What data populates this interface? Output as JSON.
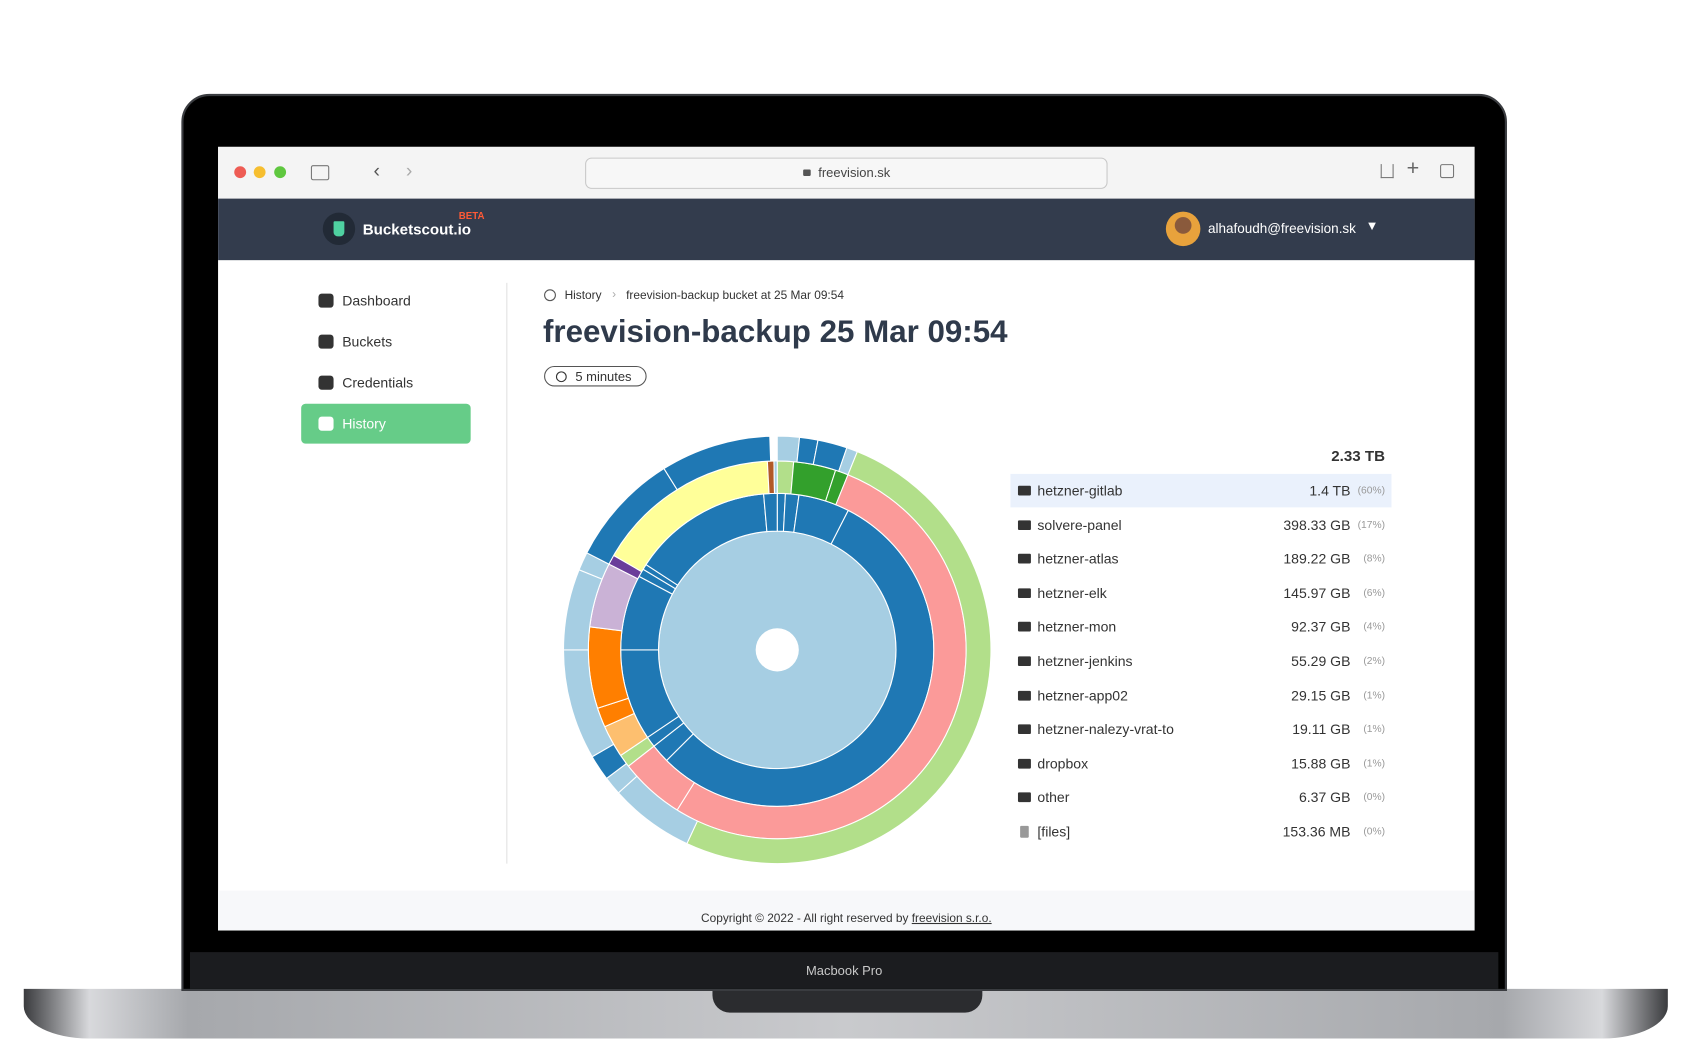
{
  "browser": {
    "url": "freevision.sk"
  },
  "header": {
    "brand": "Bucketscout.io",
    "badge": "BETA",
    "user": "alhafoudh@freevision.sk"
  },
  "sidebar": {
    "items": [
      "Dashboard",
      "Buckets",
      "Credentials",
      "History"
    ]
  },
  "breadcrumb": [
    "History",
    "freevision-backup bucket at 25 Mar 09:54"
  ],
  "title": "freevision-backup 25 Mar 09:54",
  "duration": "5 minutes",
  "usage": {
    "total": "2.33 TB",
    "rows": [
      {
        "name": "hetzner-gitlab",
        "size": "1.4 TB",
        "share": "(60%)"
      },
      {
        "name": "solvere-panel",
        "size": "398.33 GB",
        "share": "(17%)"
      },
      {
        "name": "hetzner-atlas",
        "size": "189.22 GB",
        "share": "(8%)"
      },
      {
        "name": "hetzner-elk",
        "size": "145.97 GB",
        "share": "(6%)"
      },
      {
        "name": "hetzner-mon",
        "size": "92.37 GB",
        "share": "(4%)"
      },
      {
        "name": "hetzner-jenkins",
        "size": "55.29 GB",
        "share": "(2%)"
      },
      {
        "name": "hetzner-app02",
        "size": "29.15 GB",
        "share": "(1%)"
      },
      {
        "name": "hetzner-nalezy-vrat-to",
        "size": "19.11 GB",
        "share": "(1%)"
      },
      {
        "name": "dropbox",
        "size": "15.88 GB",
        "share": "(1%)"
      },
      {
        "name": "other",
        "size": "6.37 GB",
        "share": "(0%)"
      },
      {
        "name": "[files]",
        "size": "153.36 MB",
        "share": "(0%)"
      }
    ]
  },
  "footer": {
    "text": "Copyright © 2022 - All right reserved by",
    "link": "freevision s.r.o."
  },
  "device": {
    "label": "Macbook Pro"
  }
}
